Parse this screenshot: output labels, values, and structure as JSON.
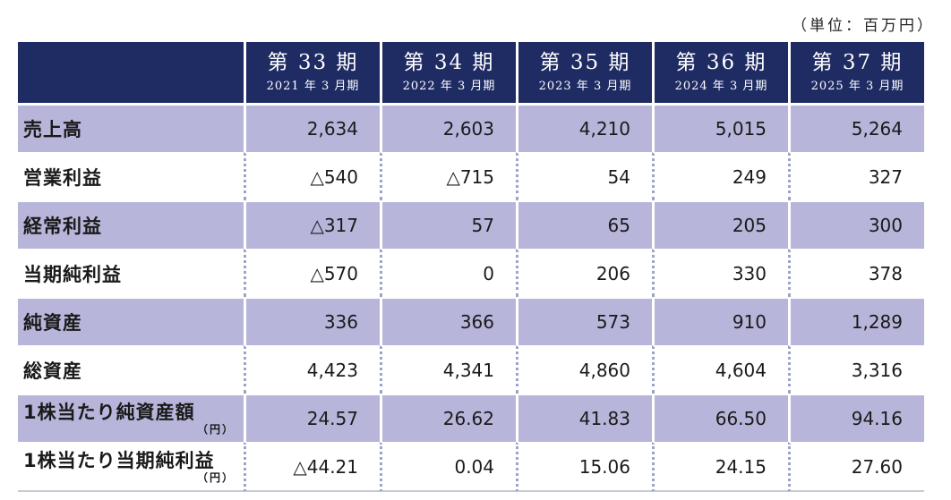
{
  "unit_note": "（単位：百万円）",
  "columns": [
    {
      "period": "第 33 期",
      "fiscal": "2021 年 3 月期"
    },
    {
      "period": "第 34 期",
      "fiscal": "2022 年 3 月期"
    },
    {
      "period": "第 35 期",
      "fiscal": "2023 年 3 月期"
    },
    {
      "period": "第 36 期",
      "fiscal": "2024 年 3 月期"
    },
    {
      "period": "第 37 期",
      "fiscal": "2025 年 3 月期"
    }
  ],
  "rows": [
    {
      "label": "売上高",
      "sub": "",
      "values": [
        "2,634",
        "2,603",
        "4,210",
        "5,015",
        "5,264"
      ]
    },
    {
      "label": "営業利益",
      "sub": "",
      "values": [
        "△540",
        "△715",
        "54",
        "249",
        "327"
      ]
    },
    {
      "label": "経常利益",
      "sub": "",
      "values": [
        "△317",
        "57",
        "65",
        "205",
        "300"
      ]
    },
    {
      "label": "当期純利益",
      "sub": "",
      "values": [
        "△570",
        "0",
        "206",
        "330",
        "378"
      ]
    },
    {
      "label": "純資産",
      "sub": "",
      "values": [
        "336",
        "366",
        "573",
        "910",
        "1,289"
      ]
    },
    {
      "label": "総資産",
      "sub": "",
      "values": [
        "4,423",
        "4,341",
        "4,860",
        "4,604",
        "3,316"
      ]
    },
    {
      "label": "1株当たり純資産額",
      "sub": "（円）",
      "values": [
        "24.57",
        "26.62",
        "41.83",
        "66.50",
        "94.16"
      ]
    },
    {
      "label": "1株当たり当期純利益",
      "sub": "（円）",
      "values": [
        "△44.21",
        "0.04",
        "15.06",
        "24.15",
        "27.60"
      ]
    }
  ],
  "colors": {
    "header_bg": "#1f2b63",
    "shaded_row": "#b7b5da",
    "dotted_divider": "#9aa4c6"
  }
}
